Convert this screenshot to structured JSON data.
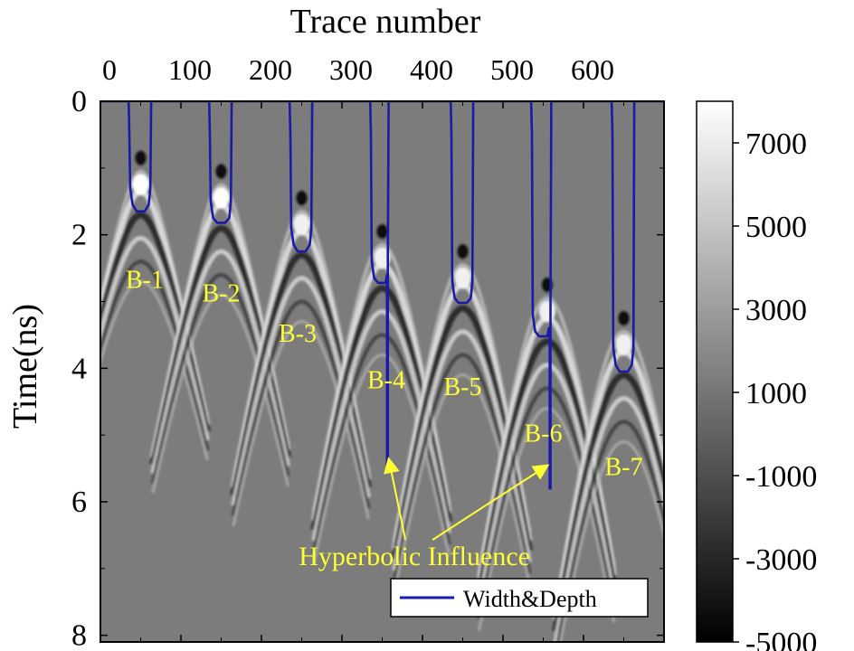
{
  "chart_data": {
    "type": "heatmap",
    "title": "",
    "xlabel": "Trace number",
    "ylabel": "Time(ns)",
    "xlim": [
      0,
      700
    ],
    "ylim": [
      8.1,
      0
    ],
    "x_ticks": [
      0,
      100,
      200,
      300,
      400,
      500,
      600
    ],
    "x_tick_labels": [
      "0",
      "100",
      "200",
      "300",
      "400",
      "500",
      "600"
    ],
    "y_ticks": [
      0,
      2,
      4,
      6,
      8
    ],
    "y_tick_labels": [
      "0",
      "2",
      "4",
      "6",
      "8"
    ],
    "x_axis_position": "top",
    "colorbar": {
      "range": [
        -5000,
        8000
      ],
      "colormap": "gray",
      "ticks": [
        7000,
        5000,
        3000,
        1000,
        -1000,
        -3000,
        -5000
      ],
      "tick_labels": [
        "7000",
        "5000",
        "3000",
        "1000",
        "-1000",
        "-3000",
        "-5000"
      ]
    },
    "targets": [
      {
        "label": "B-1",
        "trace": 50,
        "depth": 1.6,
        "label_pos": [
          55,
          2.8
        ]
      },
      {
        "label": "B-2",
        "trace": 150,
        "depth": 1.8,
        "label_pos": [
          150,
          3.0
        ]
      },
      {
        "label": "B-3",
        "trace": 250,
        "depth": 2.2,
        "label_pos": [
          245,
          3.6
        ]
      },
      {
        "label": "B-4",
        "trace": 350,
        "depth": 2.7,
        "label_pos": [
          355,
          4.3
        ]
      },
      {
        "label": "B-5",
        "trace": 450,
        "depth": 3.0,
        "label_pos": [
          450,
          4.4
        ]
      },
      {
        "label": "B-6",
        "trace": 555,
        "depth": 3.5,
        "label_pos": [
          550,
          5.1
        ]
      },
      {
        "label": "B-7",
        "trace": 650,
        "depth": 4.0,
        "label_pos": [
          650,
          5.6
        ]
      }
    ],
    "series": [
      {
        "name": "Width&Depth",
        "color": "#1a1aa8",
        "x": [
          0,
          35,
          36,
          37,
          40,
          45,
          55,
          60,
          62,
          63,
          135,
          136,
          137,
          140,
          145,
          155,
          160,
          162,
          163,
          235,
          236,
          237,
          240,
          245,
          255,
          260,
          262,
          263,
          335,
          336,
          337,
          340,
          345,
          354,
          356,
          356,
          357,
          357,
          358,
          363,
          435,
          436,
          437,
          440,
          445,
          455,
          460,
          462,
          463,
          535,
          536,
          537,
          540,
          545,
          555,
          557,
          558,
          558,
          559,
          559,
          560,
          565,
          635,
          636,
          637,
          640,
          645,
          655,
          660,
          662,
          663,
          700
        ],
        "y": [
          0,
          0,
          0.5,
          1.3,
          1.55,
          1.65,
          1.65,
          1.55,
          1.3,
          0,
          0,
          0.5,
          1.5,
          1.75,
          1.82,
          1.82,
          1.75,
          1.5,
          0,
          0,
          0.5,
          1.9,
          2.15,
          2.25,
          2.25,
          2.15,
          1.9,
          0,
          0,
          0.5,
          2.4,
          2.65,
          2.72,
          2.72,
          2.6,
          5.55,
          5.55,
          2.3,
          0,
          0,
          0,
          0.5,
          2.7,
          2.95,
          3.02,
          3.02,
          2.95,
          2.7,
          0,
          0,
          0.5,
          3.2,
          3.45,
          3.52,
          3.52,
          3.4,
          3.4,
          5.8,
          5.8,
          3.1,
          0,
          0,
          0,
          0.5,
          3.7,
          3.95,
          4.05,
          4.05,
          3.95,
          3.7,
          0,
          0
        ]
      }
    ],
    "annotations": [
      {
        "text": "Hyperbolic Influence",
        "x": 390,
        "y": 6.95,
        "color": "#ffff33",
        "arrows_to": [
          [
            358,
            5.35
          ],
          [
            556,
            5.45
          ]
        ]
      }
    ],
    "legend": {
      "position": "bottom-right",
      "entries": [
        "Width&Depth"
      ]
    },
    "grid": false
  }
}
